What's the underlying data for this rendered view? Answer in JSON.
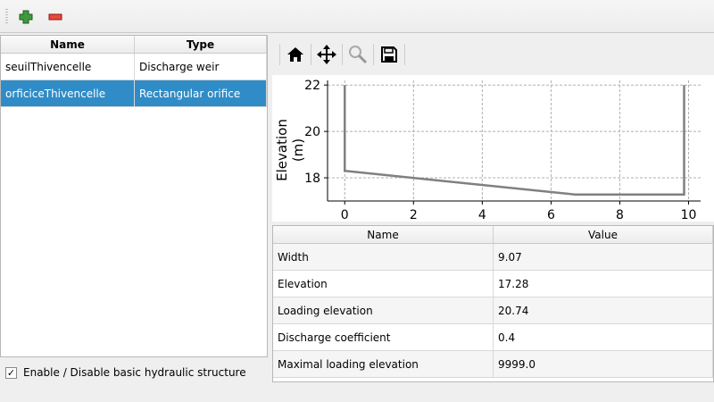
{
  "toolbar": {
    "add_icon": "plus-icon",
    "remove_icon": "minus-icon"
  },
  "structures_table": {
    "columns": [
      "Name",
      "Type"
    ],
    "rows": [
      {
        "name": "seuilThivencelle",
        "type": "Discharge weir",
        "selected": false
      },
      {
        "name": "orficiceThivencelle",
        "type": "Rectangular orifice",
        "selected": true
      }
    ]
  },
  "enable_checkbox": {
    "label": "Enable / Disable basic hydraulic structure",
    "checked": true
  },
  "plot_toolbar": {
    "icons": [
      "home-icon",
      "move-icon",
      "zoom-icon",
      "save-icon"
    ]
  },
  "chart_data": {
    "type": "line",
    "xlabel": "",
    "ylabel": "Elevation (m)",
    "xlim": [
      -0.5,
      10.35
    ],
    "ylim": [
      17.0,
      22.2
    ],
    "xticks": [
      0,
      2,
      4,
      6,
      8,
      10
    ],
    "yticks": [
      18,
      20,
      22
    ],
    "grid": true,
    "series": [
      {
        "x": [
          0,
          0,
          6.7,
          9.87,
          9.87
        ],
        "y": [
          22,
          18.3,
          17.28,
          17.28,
          22
        ],
        "color": "#808080"
      }
    ]
  },
  "properties_table": {
    "columns": [
      "Name",
      "Value"
    ],
    "rows": [
      {
        "name": "Width",
        "value": "9.07"
      },
      {
        "name": "Elevation",
        "value": "17.28"
      },
      {
        "name": "Loading elevation",
        "value": "20.74"
      },
      {
        "name": "Discharge coefficient",
        "value": "0.4"
      },
      {
        "name": "Maximal loading elevation",
        "value": "9999.0"
      }
    ]
  },
  "colors": {
    "selection": "#308cc6"
  }
}
